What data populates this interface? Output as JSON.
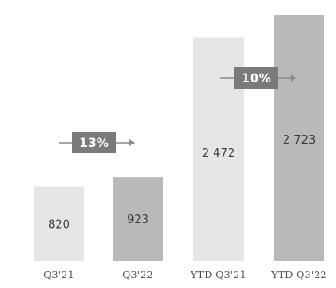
{
  "chart_data": {
    "type": "bar",
    "categories": [
      "Q3'21",
      "Q3'22",
      "YTD Q3'21",
      "YTD Q3'22"
    ],
    "values": [
      820,
      923,
      2472,
      2723
    ],
    "value_labels": [
      "820",
      "923",
      "2 472",
      "2 723"
    ],
    "ylim": [
      0,
      2723
    ],
    "grid": false,
    "bar_colors": [
      "#e6e6e6",
      "#b9b9b9",
      "#e6e6e6",
      "#b9b9b9"
    ],
    "growth_annotations": [
      {
        "text": "13%",
        "from": 0,
        "to": 1
      },
      {
        "text": "10%",
        "from": 2,
        "to": 3
      }
    ],
    "annotation_color": "#7a7a7a",
    "arrow_color": "#8a8a8a"
  }
}
